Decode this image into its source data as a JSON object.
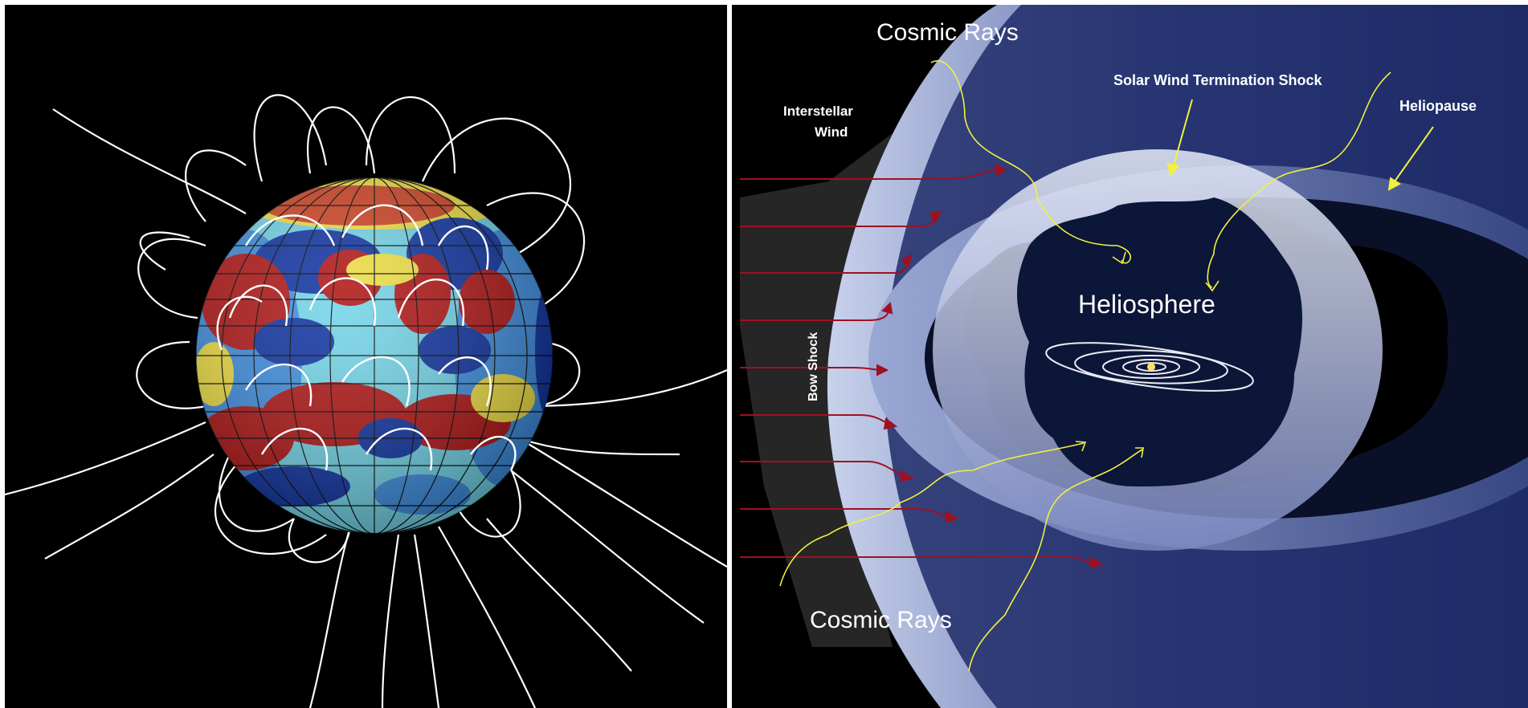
{
  "left_panel": {
    "description_free": true,
    "sphere_colors": {
      "positive": "#b01010",
      "negative": "#0a2fa0",
      "neutral": "#6fd4e8",
      "mid": "#f0e040",
      "field_lines": "#ffffff",
      "grid": "#000000"
    }
  },
  "right_panel": {
    "labels": {
      "cosmic_rays_top": "Cosmic Rays",
      "interstellar_wind": "Interstellar\nWind",
      "interstellar_wind_line1": "Interstellar",
      "interstellar_wind_line2": "Wind",
      "termination_shock": "Solar Wind Termination Shock",
      "heliopause": "Heliopause",
      "heliosphere": "Heliosphere",
      "bow_shock": "Bow Shock",
      "cosmic_rays_bottom": "Cosmic Rays"
    },
    "colors": {
      "wind_arrows": "#a01020",
      "cosmic_ray_paths": "#f2f040",
      "pointer_arrows": "#f2f040",
      "sun": "#ffe060",
      "orbits": "#e8ecf4",
      "space": "#0c1430",
      "shell": "#b8c4e0"
    }
  }
}
